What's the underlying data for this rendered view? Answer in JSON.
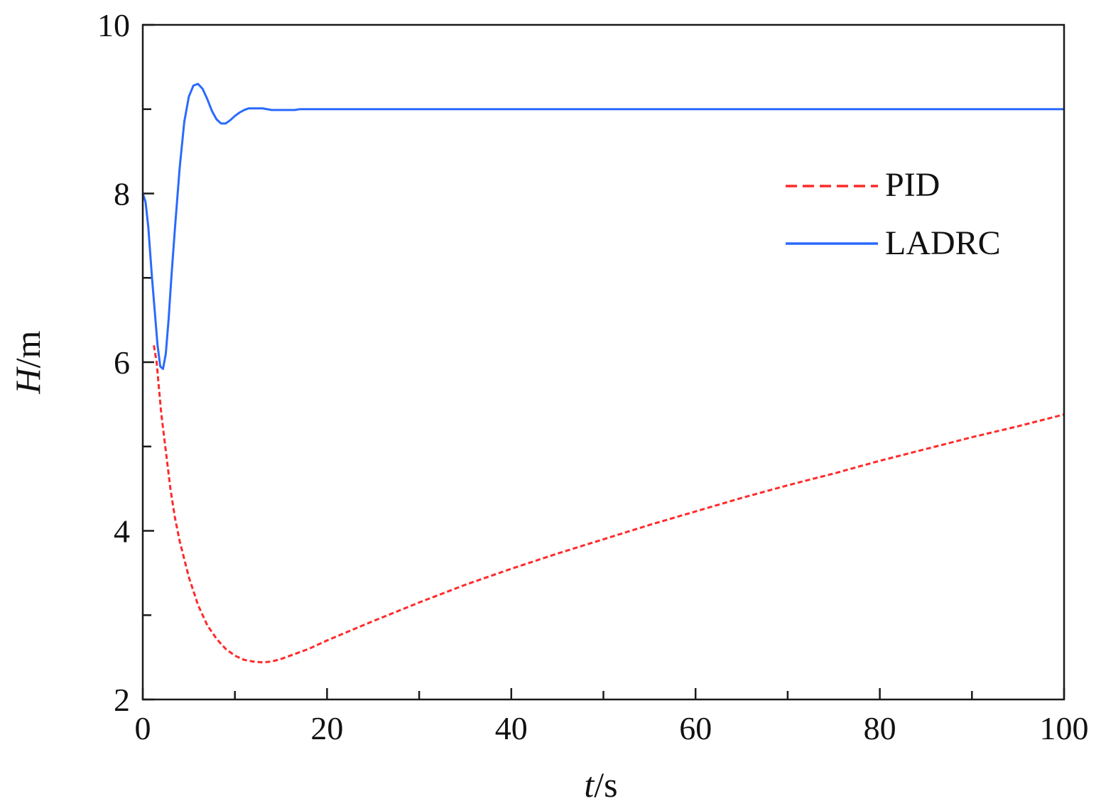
{
  "chart_data": {
    "type": "line",
    "title": "",
    "xlabel": {
      "var": "t",
      "unit": "/s"
    },
    "ylabel": {
      "var": "H",
      "unit": "/m"
    },
    "xlim": [
      0,
      100
    ],
    "ylim": [
      2,
      10
    ],
    "x_major_ticks": [
      0,
      20,
      40,
      60,
      80,
      100
    ],
    "x_minor_ticks": [
      10,
      30,
      50,
      70,
      90
    ],
    "y_major_ticks": [
      2,
      4,
      6,
      8,
      10
    ],
    "y_minor_ticks": [
      3,
      5,
      7,
      9
    ],
    "x_tick_labels": [
      "0",
      "20",
      "40",
      "60",
      "80",
      "100"
    ],
    "y_tick_labels": [
      "2",
      "4",
      "6",
      "8",
      "10"
    ],
    "grid": false,
    "legend_position": "top-right",
    "series": [
      {
        "name": "PID",
        "color": "#ff2a2a",
        "style": "dashed",
        "x": [
          1.2,
          1.5,
          2,
          2.5,
          3,
          3.5,
          4,
          5,
          6,
          7,
          8,
          9,
          10,
          11,
          12,
          13,
          14,
          15,
          16,
          18,
          20,
          25,
          30,
          35,
          40,
          45,
          50,
          55,
          60,
          65,
          70,
          75,
          80,
          85,
          90,
          95,
          100
        ],
        "y": [
          6.2,
          6.0,
          5.4,
          4.95,
          4.5,
          4.15,
          3.88,
          3.45,
          3.12,
          2.88,
          2.72,
          2.6,
          2.52,
          2.47,
          2.45,
          2.44,
          2.45,
          2.48,
          2.52,
          2.6,
          2.7,
          2.93,
          3.15,
          3.36,
          3.55,
          3.73,
          3.9,
          4.07,
          4.23,
          4.39,
          4.54,
          4.68,
          4.83,
          4.97,
          5.11,
          5.24,
          5.38
        ]
      },
      {
        "name": "LADRC",
        "color": "#2a6aff",
        "style": "solid",
        "x": [
          0,
          0.3,
          0.6,
          1.0,
          1.3,
          1.6,
          1.9,
          2.2,
          2.5,
          2.8,
          3.1,
          3.5,
          4.0,
          4.5,
          5.0,
          5.5,
          6.0,
          6.5,
          7.0,
          7.5,
          8.0,
          8.5,
          9.0,
          9.5,
          10.0,
          10.5,
          11.0,
          11.5,
          12.0,
          13.0,
          14.0,
          15.0,
          16.0,
          16.5,
          17.0,
          17.5,
          20,
          40,
          60,
          80,
          100
        ],
        "y": [
          8.0,
          7.9,
          7.6,
          7.0,
          6.6,
          6.2,
          5.95,
          5.92,
          6.1,
          6.5,
          7.0,
          7.6,
          8.3,
          8.85,
          9.15,
          9.28,
          9.3,
          9.24,
          9.12,
          8.98,
          8.88,
          8.83,
          8.83,
          8.87,
          8.92,
          8.96,
          8.99,
          9.01,
          9.01,
          9.01,
          8.99,
          8.99,
          8.99,
          8.99,
          9.0,
          9.0,
          9.0,
          9.0,
          9.0,
          9.0,
          9.0
        ]
      }
    ]
  }
}
